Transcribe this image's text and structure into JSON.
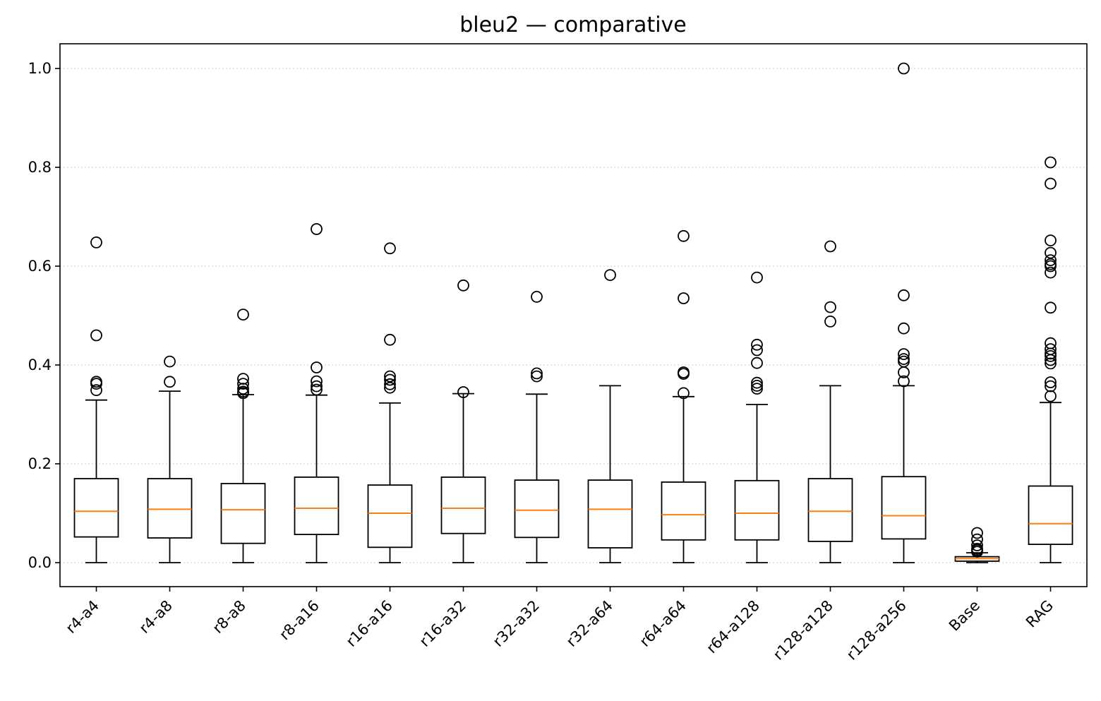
{
  "chart_data": {
    "type": "box",
    "title": "bleu2 — comparative",
    "xlabel": "",
    "ylabel": "",
    "ylim": [
      -0.05,
      1.05
    ],
    "yticks": [
      "0.0",
      "0.2",
      "0.4",
      "0.6",
      "0.8",
      "1.0"
    ],
    "grid": "horizontal dotted",
    "colors": {
      "median": "#ff7f0e",
      "box": "#000000",
      "grid": "#cccccc"
    },
    "categories": [
      "r4-a4",
      "r4-a8",
      "r8-a8",
      "r8-a16",
      "r16-a16",
      "r16-a32",
      "r32-a32",
      "r32-a64",
      "r64-a64",
      "r64-a128",
      "r128-a128",
      "r128-a256",
      "Base",
      "RAG"
    ],
    "series": [
      {
        "whisker_low": 0.0,
        "q1": 0.052,
        "median": 0.104,
        "q3": 0.17,
        "whisker_high": 0.329,
        "fliers": [
          0.648,
          0.46,
          0.366,
          0.362,
          0.349
        ]
      },
      {
        "whisker_low": 0.0,
        "q1": 0.05,
        "median": 0.108,
        "q3": 0.17,
        "whisker_high": 0.347,
        "fliers": [
          0.407,
          0.366
        ]
      },
      {
        "whisker_low": 0.0,
        "q1": 0.039,
        "median": 0.107,
        "q3": 0.16,
        "whisker_high": 0.34,
        "fliers": [
          0.502,
          0.372,
          0.362,
          0.352,
          0.346,
          0.343
        ]
      },
      {
        "whisker_low": 0.0,
        "q1": 0.057,
        "median": 0.11,
        "q3": 0.173,
        "whisker_high": 0.339,
        "fliers": [
          0.675,
          0.395,
          0.367,
          0.357,
          0.35
        ]
      },
      {
        "whisker_low": 0.0,
        "q1": 0.031,
        "median": 0.1,
        "q3": 0.157,
        "whisker_high": 0.323,
        "fliers": [
          0.636,
          0.451,
          0.377,
          0.37,
          0.361,
          0.354
        ]
      },
      {
        "whisker_low": 0.0,
        "q1": 0.059,
        "median": 0.11,
        "q3": 0.173,
        "whisker_high": 0.342,
        "fliers": [
          0.561,
          0.345
        ]
      },
      {
        "whisker_low": 0.0,
        "q1": 0.051,
        "median": 0.106,
        "q3": 0.167,
        "whisker_high": 0.341,
        "fliers": [
          0.538,
          0.383,
          0.377
        ]
      },
      {
        "whisker_low": 0.0,
        "q1": 0.03,
        "median": 0.108,
        "q3": 0.167,
        "whisker_high": 0.358,
        "fliers": [
          0.582
        ]
      },
      {
        "whisker_low": 0.0,
        "q1": 0.046,
        "median": 0.097,
        "q3": 0.163,
        "whisker_high": 0.336,
        "fliers": [
          0.661,
          0.535,
          0.385,
          0.382,
          0.343
        ]
      },
      {
        "whisker_low": 0.0,
        "q1": 0.046,
        "median": 0.1,
        "q3": 0.166,
        "whisker_high": 0.32,
        "fliers": [
          0.577,
          0.441,
          0.43,
          0.404,
          0.364,
          0.358,
          0.352
        ]
      },
      {
        "whisker_low": 0.0,
        "q1": 0.043,
        "median": 0.104,
        "q3": 0.17,
        "whisker_high": 0.358,
        "fliers": [
          0.64,
          0.517,
          0.488
        ]
      },
      {
        "whisker_low": 0.0,
        "q1": 0.048,
        "median": 0.095,
        "q3": 0.174,
        "whisker_high": 0.358,
        "fliers": [
          1.0,
          0.541,
          0.474,
          0.422,
          0.412,
          0.407,
          0.385,
          0.367
        ]
      },
      {
        "whisker_low": 0.0,
        "q1": 0.003,
        "median": 0.008,
        "q3": 0.012,
        "whisker_high": 0.02,
        "fliers": [
          0.06,
          0.047,
          0.035,
          0.028,
          0.025,
          0.022
        ]
      },
      {
        "whisker_low": 0.0,
        "q1": 0.037,
        "median": 0.079,
        "q3": 0.155,
        "whisker_high": 0.324,
        "fliers": [
          0.81,
          0.767,
          0.652,
          0.627,
          0.612,
          0.604,
          0.6,
          0.587,
          0.516,
          0.444,
          0.432,
          0.423,
          0.418,
          0.41,
          0.403,
          0.365,
          0.357,
          0.337
        ]
      }
    ]
  }
}
